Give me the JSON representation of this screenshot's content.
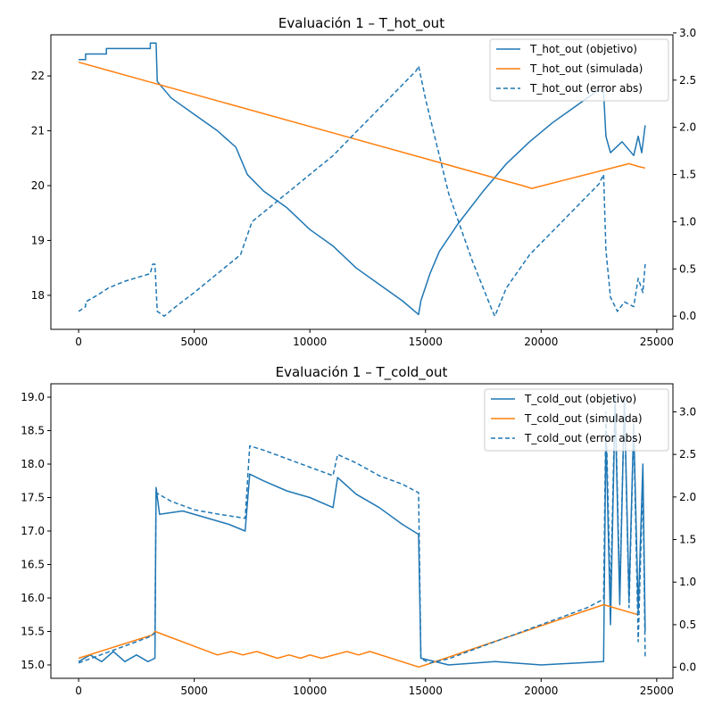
{
  "chart_data": [
    {
      "type": "line",
      "title": "Evaluación 1 – T_hot_out",
      "xlabel": "",
      "ylabel": "",
      "xlim": [
        -1200,
        25700
      ],
      "ylim_left": [
        17.38,
        22.75
      ],
      "ylim_right": [
        -0.14,
        2.98
      ],
      "x_ticks": [
        0,
        5000,
        10000,
        15000,
        20000,
        25000
      ],
      "y_ticks_left": [
        18,
        19,
        20,
        21,
        22
      ],
      "y_ticks_right": [
        0.0,
        0.5,
        1.0,
        1.5,
        2.0,
        2.5,
        3.0
      ],
      "y_tick_labels_right": [
        "0.0",
        "0.5",
        "1.0",
        "1.5",
        "2.0",
        "2.5",
        "3.0"
      ],
      "legend_position": "top-right",
      "grid": false,
      "series": [
        {
          "name": "T_hot_out (objetivo)",
          "axis": "left",
          "color": "#1f77b4",
          "style": "solid",
          "points": [
            [
              0,
              22.3
            ],
            [
              300,
              22.3
            ],
            [
              300,
              22.4
            ],
            [
              1200,
              22.4
            ],
            [
              1200,
              22.5
            ],
            [
              3100,
              22.5
            ],
            [
              3100,
              22.6
            ],
            [
              3350,
              22.6
            ],
            [
              3400,
              21.9
            ],
            [
              4000,
              21.6
            ],
            [
              5000,
              21.3
            ],
            [
              6000,
              21.0
            ],
            [
              6800,
              20.7
            ],
            [
              7300,
              20.2
            ],
            [
              8000,
              19.9
            ],
            [
              9000,
              19.6
            ],
            [
              10000,
              19.2
            ],
            [
              11000,
              18.9
            ],
            [
              12000,
              18.5
            ],
            [
              13000,
              18.2
            ],
            [
              14000,
              17.9
            ],
            [
              14700,
              17.65
            ],
            [
              14800,
              17.9
            ],
            [
              15200,
              18.4
            ],
            [
              15600,
              18.8
            ],
            [
              16400,
              19.3
            ],
            [
              17500,
              19.9
            ],
            [
              18500,
              20.4
            ],
            [
              19500,
              20.8
            ],
            [
              20500,
              21.15
            ],
            [
              21500,
              21.45
            ],
            [
              22500,
              21.75
            ],
            [
              22700,
              21.7
            ],
            [
              22800,
              20.9
            ],
            [
              23000,
              20.6
            ],
            [
              23500,
              20.8
            ],
            [
              24000,
              20.55
            ],
            [
              24200,
              20.9
            ],
            [
              24350,
              20.6
            ],
            [
              24500,
              21.1
            ]
          ]
        },
        {
          "name": "T_hot_out (simulada)",
          "axis": "left",
          "color": "#ff7f0e",
          "style": "solid",
          "points": [
            [
              0,
              22.25
            ],
            [
              19200,
              20.0
            ],
            [
              19600,
              19.95
            ],
            [
              23800,
              20.4
            ],
            [
              24200,
              20.35
            ],
            [
              24500,
              20.32
            ]
          ]
        },
        {
          "name": "T_hot_out (error abs)",
          "axis": "right",
          "color": "#1f77b4",
          "style": "dashed",
          "points": [
            [
              0,
              0.05
            ],
            [
              300,
              0.1
            ],
            [
              300,
              0.15
            ],
            [
              800,
              0.22
            ],
            [
              1300,
              0.3
            ],
            [
              2000,
              0.37
            ],
            [
              3100,
              0.45
            ],
            [
              3200,
              0.55
            ],
            [
              3300,
              0.55
            ],
            [
              3400,
              0.05
            ],
            [
              3700,
              0.0
            ],
            [
              4200,
              0.1
            ],
            [
              5000,
              0.25
            ],
            [
              6000,
              0.45
            ],
            [
              7000,
              0.65
            ],
            [
              7500,
              1.0
            ],
            [
              8000,
              1.1
            ],
            [
              9000,
              1.3
            ],
            [
              10000,
              1.5
            ],
            [
              11000,
              1.7
            ],
            [
              12000,
              1.95
            ],
            [
              13000,
              2.2
            ],
            [
              14000,
              2.45
            ],
            [
              14600,
              2.6
            ],
            [
              14700,
              2.65
            ],
            [
              15000,
              2.3
            ],
            [
              15400,
              1.9
            ],
            [
              16000,
              1.3
            ],
            [
              17000,
              0.6
            ],
            [
              17900,
              0.05
            ],
            [
              18000,
              0.0
            ],
            [
              18500,
              0.3
            ],
            [
              19500,
              0.65
            ],
            [
              20500,
              0.9
            ],
            [
              21500,
              1.15
            ],
            [
              22500,
              1.4
            ],
            [
              22700,
              1.5
            ],
            [
              22800,
              0.7
            ],
            [
              23000,
              0.2
            ],
            [
              23300,
              0.05
            ],
            [
              23600,
              0.15
            ],
            [
              24000,
              0.1
            ],
            [
              24200,
              0.4
            ],
            [
              24400,
              0.25
            ],
            [
              24500,
              0.55
            ]
          ]
        }
      ]
    },
    {
      "type": "line",
      "title": "Evaluación 1 – T_cold_out",
      "xlabel": "",
      "ylabel": "",
      "xlim": [
        -1200,
        25700
      ],
      "ylim_left": [
        14.8,
        19.2
      ],
      "ylim_right": [
        -0.13,
        3.33
      ],
      "x_ticks": [
        0,
        5000,
        10000,
        15000,
        20000,
        25000
      ],
      "y_ticks_left": [
        15.0,
        15.5,
        16.0,
        16.5,
        17.0,
        17.5,
        18.0,
        18.5,
        19.0
      ],
      "y_tick_labels_left": [
        "15.0",
        "15.5",
        "16.0",
        "16.5",
        "17.0",
        "17.5",
        "18.0",
        "18.5",
        "19.0"
      ],
      "y_ticks_right": [
        0.0,
        0.5,
        1.0,
        1.5,
        2.0,
        2.5,
        3.0
      ],
      "y_tick_labels_right": [
        "0.0",
        "0.5",
        "1.0",
        "1.5",
        "2.0",
        "2.5",
        "3.0"
      ],
      "legend_position": "top-right",
      "grid": false,
      "series": [
        {
          "name": "T_cold_out (objetivo)",
          "axis": "left",
          "color": "#1f77b4",
          "style": "solid",
          "points": [
            [
              0,
              15.05
            ],
            [
              500,
              15.15
            ],
            [
              1000,
              15.05
            ],
            [
              1500,
              15.2
            ],
            [
              2000,
              15.05
            ],
            [
              2500,
              15.15
            ],
            [
              3000,
              15.05
            ],
            [
              3300,
              15.1
            ],
            [
              3350,
              17.65
            ],
            [
              3500,
              17.25
            ],
            [
              4500,
              17.3
            ],
            [
              5500,
              17.2
            ],
            [
              6500,
              17.1
            ],
            [
              7200,
              17.0
            ],
            [
              7400,
              17.85
            ],
            [
              8000,
              17.75
            ],
            [
              9000,
              17.6
            ],
            [
              10000,
              17.5
            ],
            [
              11000,
              17.35
            ],
            [
              11200,
              17.8
            ],
            [
              12000,
              17.55
            ],
            [
              13000,
              17.35
            ],
            [
              14000,
              17.1
            ],
            [
              14700,
              16.95
            ],
            [
              14800,
              15.1
            ],
            [
              16000,
              15.0
            ],
            [
              18000,
              15.05
            ],
            [
              20000,
              15.0
            ],
            [
              22700,
              15.05
            ],
            [
              22800,
              18.5
            ],
            [
              23000,
              15.6
            ],
            [
              23200,
              18.9
            ],
            [
              23400,
              15.9
            ],
            [
              23600,
              19.0
            ],
            [
              23800,
              16.0
            ],
            [
              24000,
              18.6
            ],
            [
              24200,
              15.8
            ],
            [
              24400,
              18.0
            ],
            [
              24500,
              15.5
            ]
          ]
        },
        {
          "name": "T_cold_out (simulada)",
          "axis": "left",
          "color": "#ff7f0e",
          "style": "solid",
          "points": [
            [
              0,
              15.1
            ],
            [
              3200,
              15.45
            ],
            [
              3300,
              15.5
            ],
            [
              6000,
              15.15
            ],
            [
              6600,
              15.2
            ],
            [
              7100,
              15.15
            ],
            [
              7700,
              15.2
            ],
            [
              8600,
              15.1
            ],
            [
              9100,
              15.15
            ],
            [
              9600,
              15.1
            ],
            [
              10000,
              15.15
            ],
            [
              10500,
              15.1
            ],
            [
              11600,
              15.2
            ],
            [
              12100,
              15.15
            ],
            [
              12600,
              15.2
            ],
            [
              14700,
              14.97
            ],
            [
              15000,
              15.0
            ],
            [
              22700,
              15.9
            ],
            [
              24200,
              15.75
            ]
          ]
        },
        {
          "name": "T_cold_out (error abs)",
          "axis": "right",
          "color": "#1f77b4",
          "style": "dashed",
          "points": [
            [
              0,
              0.05
            ],
            [
              500,
              0.1
            ],
            [
              1000,
              0.15
            ],
            [
              1500,
              0.2
            ],
            [
              2000,
              0.25
            ],
            [
              2500,
              0.3
            ],
            [
              3000,
              0.35
            ],
            [
              3300,
              0.4
            ],
            [
              3350,
              2.05
            ],
            [
              4000,
              1.95
            ],
            [
              5000,
              1.85
            ],
            [
              6000,
              1.8
            ],
            [
              7200,
              1.75
            ],
            [
              7400,
              2.6
            ],
            [
              8000,
              2.55
            ],
            [
              9000,
              2.45
            ],
            [
              10000,
              2.35
            ],
            [
              11000,
              2.25
            ],
            [
              11200,
              2.5
            ],
            [
              12000,
              2.4
            ],
            [
              13000,
              2.25
            ],
            [
              14000,
              2.15
            ],
            [
              14700,
              2.05
            ],
            [
              14800,
              0.1
            ],
            [
              15200,
              0.05
            ],
            [
              16000,
              0.1
            ],
            [
              17000,
              0.2
            ],
            [
              18000,
              0.3
            ],
            [
              19000,
              0.4
            ],
            [
              20000,
              0.5
            ],
            [
              21000,
              0.6
            ],
            [
              22000,
              0.7
            ],
            [
              22700,
              0.8
            ],
            [
              22800,
              3.0
            ],
            [
              23000,
              0.8
            ],
            [
              23200,
              3.2
            ],
            [
              23400,
              0.9
            ],
            [
              23600,
              3.1
            ],
            [
              23800,
              0.7
            ],
            [
              24000,
              2.8
            ],
            [
              24200,
              0.3
            ],
            [
              24400,
              2.2
            ],
            [
              24500,
              0.1
            ]
          ]
        }
      ]
    }
  ]
}
